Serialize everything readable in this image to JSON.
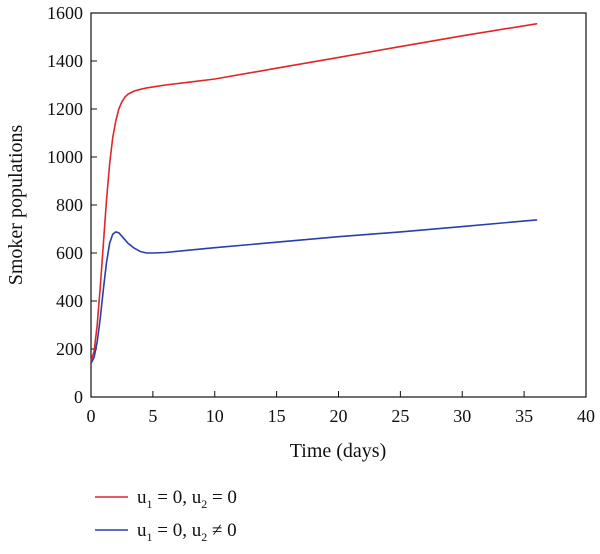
{
  "colors": {
    "series1": "#e0262a",
    "series2": "#2a3fa8",
    "axis": "#111111"
  },
  "chart_data": {
    "type": "line",
    "title": "",
    "xlabel": "Time (days)",
    "ylabel": "Smoker populations",
    "xlim": [
      0,
      40
    ],
    "ylim": [
      0,
      1600
    ],
    "xticks": [
      "0",
      "5",
      "10",
      "15",
      "20",
      "25",
      "30",
      "35",
      "40"
    ],
    "yticks": [
      "0",
      "200",
      "400",
      "600",
      "800",
      "1000",
      "1200",
      "1400",
      "1600"
    ],
    "grid": false,
    "legend_position": "bottom-left, below plot",
    "series": [
      {
        "name_parts": [
          "u",
          "1",
          " = 0, u",
          "2",
          " = 0"
        ],
        "color": "#e0262a",
        "x": [
          0,
          0.25,
          0.5,
          0.75,
          1.0,
          1.25,
          1.5,
          1.75,
          2.0,
          2.25,
          2.5,
          2.75,
          3.0,
          3.5,
          4.0,
          4.5,
          5.0,
          6.0,
          8.0,
          10,
          15,
          20,
          25,
          30,
          36
        ],
        "y": [
          150,
          190,
          300,
          460,
          640,
          820,
          970,
          1080,
          1150,
          1200,
          1230,
          1250,
          1262,
          1275,
          1282,
          1288,
          1292,
          1300,
          1312,
          1325,
          1370,
          1415,
          1460,
          1505,
          1555
        ]
      },
      {
        "name_parts": [
          "u",
          "1",
          " = 0, u",
          "2",
          " ≠ 0"
        ],
        "color": "#2a3fa8",
        "x": [
          0,
          0.25,
          0.5,
          0.75,
          1.0,
          1.25,
          1.5,
          1.75,
          2.0,
          2.25,
          2.5,
          2.75,
          3.0,
          3.5,
          4.0,
          4.5,
          5.0,
          6.0,
          8.0,
          10,
          15,
          20,
          25,
          30,
          36
        ],
        "y": [
          140,
          165,
          230,
          330,
          450,
          560,
          640,
          678,
          688,
          684,
          670,
          655,
          640,
          620,
          606,
          600,
          600,
          602,
          612,
          622,
          645,
          668,
          688,
          710,
          738
        ]
      }
    ]
  }
}
